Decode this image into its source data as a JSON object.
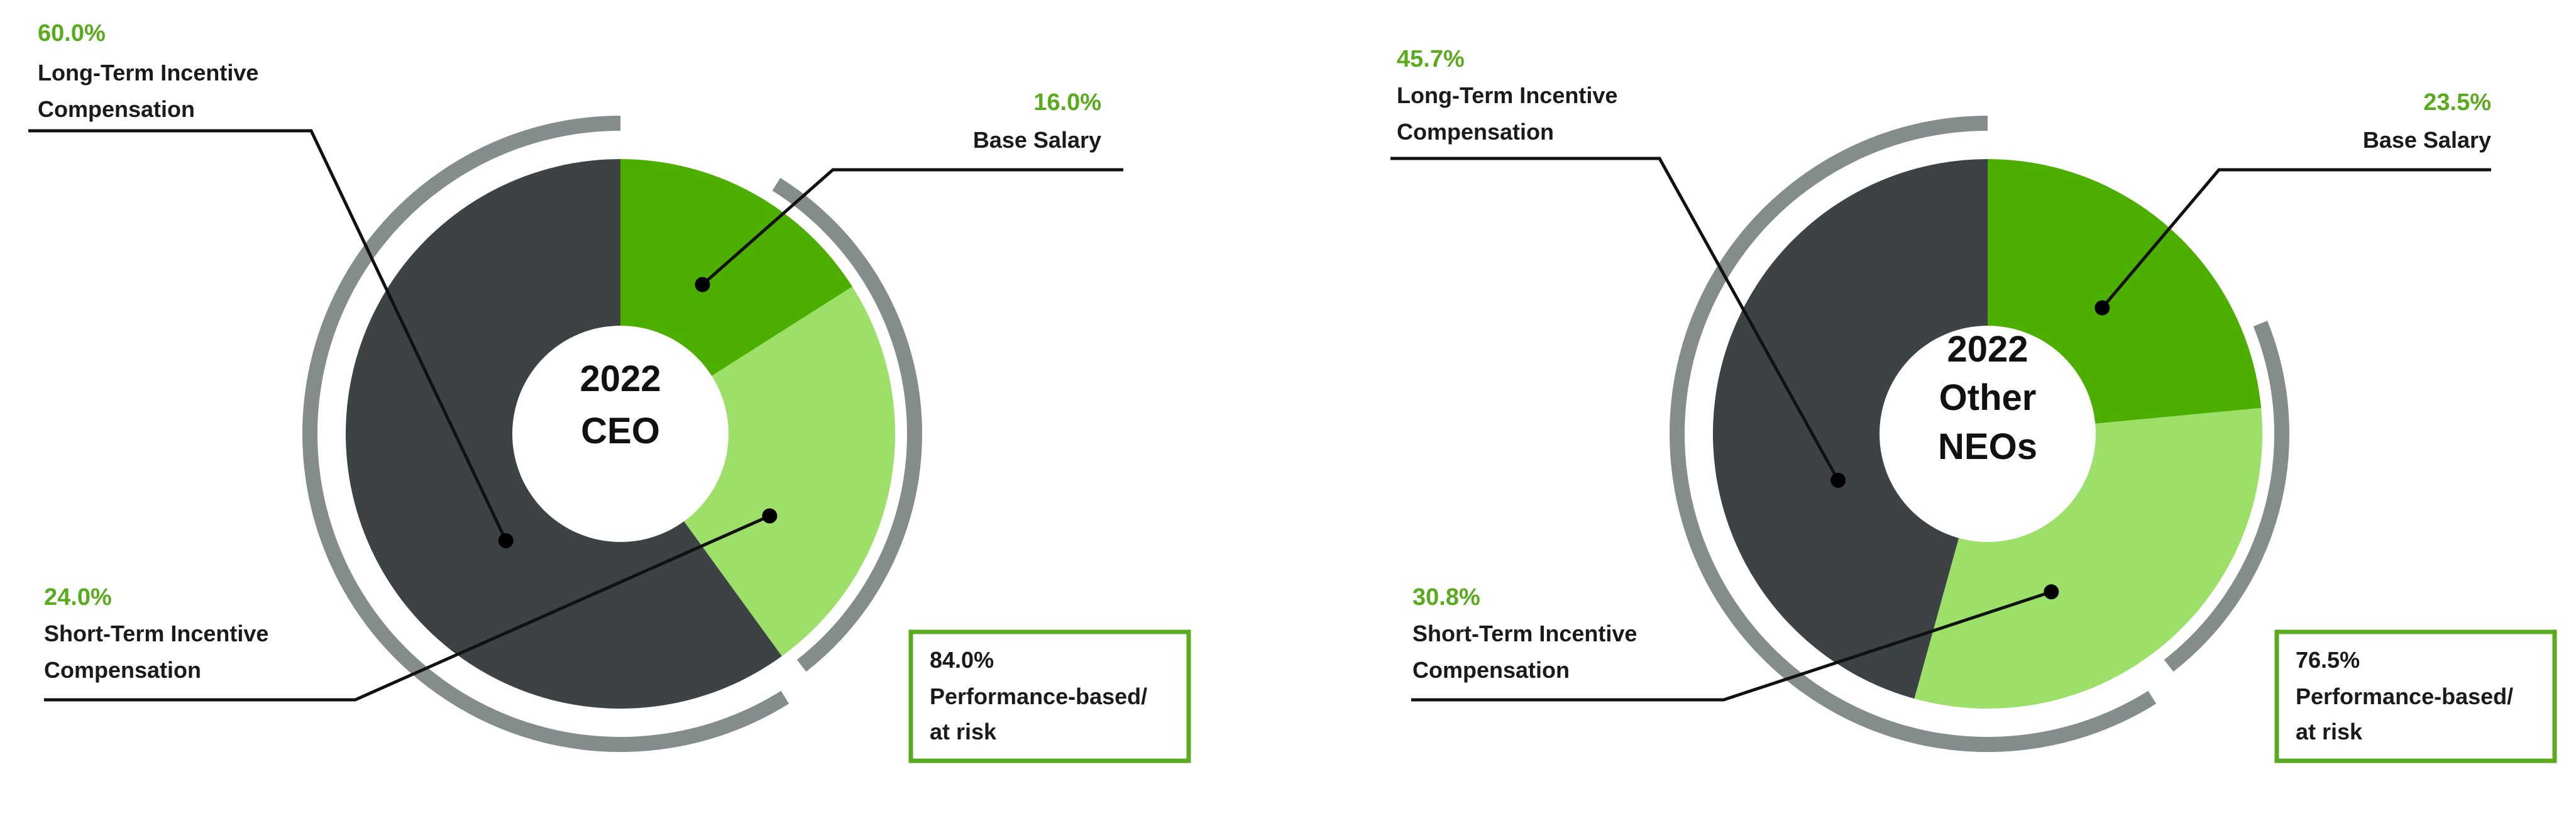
{
  "colors": {
    "base_salary": "#4caf00",
    "short_term": "#9ce06a",
    "long_term": "#3d4244",
    "at_risk_arc": "#858c8c",
    "callout_border": "#5aaa1e",
    "pct_text": "#5aaa1e",
    "leader_line": "#111111"
  },
  "chart_data": [
    {
      "type": "pie",
      "title": "2022 CEO",
      "center_label": [
        "2022",
        "CEO"
      ],
      "series": [
        {
          "name": "Base Salary",
          "value": 16.0,
          "pct_label": "16.0%",
          "label_lines": [
            "Base Salary"
          ]
        },
        {
          "name": "Short-Term Incentive Compensation",
          "value": 24.0,
          "pct_label": "24.0%",
          "label_lines": [
            "Short-Term Incentive",
            "Compensation"
          ]
        },
        {
          "name": "Long-Term Incentive Compensation",
          "value": 60.0,
          "pct_label": "60.0%",
          "label_lines": [
            "Long-Term Incentive",
            "Compensation"
          ]
        }
      ],
      "callout": {
        "pct": "84.0%",
        "lines": [
          "Performance-based/",
          "at risk"
        ]
      }
    },
    {
      "type": "pie",
      "title": "2022 Other NEOs",
      "center_label": [
        "2022",
        "Other",
        "NEOs"
      ],
      "series": [
        {
          "name": "Base Salary",
          "value": 23.5,
          "pct_label": "23.5%",
          "label_lines": [
            "Base Salary"
          ]
        },
        {
          "name": "Short-Term Incentive Compensation",
          "value": 30.8,
          "pct_label": "30.8%",
          "label_lines": [
            "Short-Term Incentive",
            "Compensation"
          ]
        },
        {
          "name": "Long-Term Incentive Compensation",
          "value": 45.7,
          "pct_label": "45.7%",
          "label_lines": [
            "Long-Term Incentive",
            "Compensation"
          ]
        }
      ],
      "callout": {
        "pct": "76.5%",
        "lines": [
          "Performance-based/",
          "at risk"
        ]
      }
    }
  ]
}
